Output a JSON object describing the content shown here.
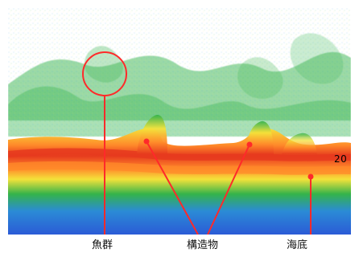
{
  "image": {
    "labels": {
      "fish_school": "魚群",
      "structure": "構造物",
      "seabed": "海底"
    },
    "depth_marker": "20",
    "colors": {
      "background": "#ffffff",
      "leader_line": "#ff2a2a",
      "fish_circle": "#ff2a2a",
      "sonar_blue": "#2b5bd6",
      "sonar_green": "#34b34a",
      "sonar_yellow": "#f4e23a",
      "sonar_orange": "#ff8a2a",
      "sonar_red": "#e63a1e"
    }
  }
}
